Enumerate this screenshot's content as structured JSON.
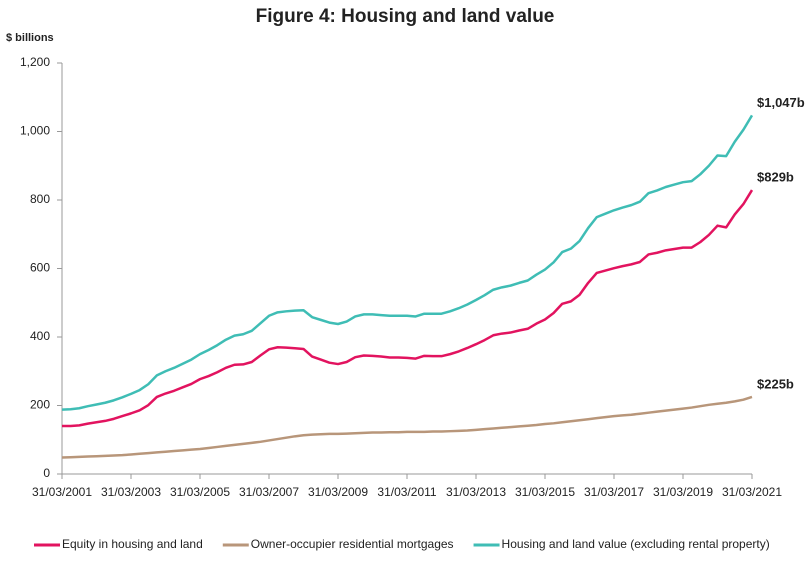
{
  "chart_data": {
    "type": "line",
    "title": "Figure 4: Housing and land value",
    "ylabel": "$ billions",
    "x": [
      "31/03/2001",
      "30/06/2001",
      "30/09/2001",
      "31/12/2001",
      "31/03/2002",
      "30/06/2002",
      "30/09/2002",
      "31/12/2002",
      "31/03/2003",
      "30/06/2003",
      "30/09/2003",
      "31/12/2003",
      "31/03/2004",
      "30/06/2004",
      "30/09/2004",
      "31/12/2004",
      "31/03/2005",
      "30/06/2005",
      "30/09/2005",
      "31/12/2005",
      "31/03/2006",
      "30/06/2006",
      "30/09/2006",
      "31/12/2006",
      "31/03/2007",
      "30/06/2007",
      "30/09/2007",
      "31/12/2007",
      "31/03/2008",
      "30/06/2008",
      "30/09/2008",
      "31/12/2008",
      "31/03/2009",
      "30/06/2009",
      "30/09/2009",
      "31/12/2009",
      "31/03/2010",
      "30/06/2010",
      "30/09/2010",
      "31/12/2010",
      "31/03/2011",
      "30/06/2011",
      "30/09/2011",
      "31/12/2011",
      "31/03/2012",
      "30/06/2012",
      "30/09/2012",
      "31/12/2012",
      "31/03/2013",
      "30/06/2013",
      "30/09/2013",
      "31/12/2013",
      "31/03/2014",
      "30/06/2014",
      "30/09/2014",
      "31/12/2014",
      "31/03/2015",
      "30/06/2015",
      "30/09/2015",
      "31/12/2015",
      "31/03/2016",
      "30/06/2016",
      "30/09/2016",
      "31/12/2016",
      "31/03/2017",
      "30/06/2017",
      "30/09/2017",
      "31/12/2017",
      "31/03/2018",
      "30/06/2018",
      "30/09/2018",
      "31/12/2018",
      "31/03/2019",
      "30/06/2019",
      "30/09/2019",
      "31/12/2019",
      "31/03/2020",
      "30/06/2020",
      "30/09/2020",
      "31/12/2020",
      "31/03/2021"
    ],
    "xticks": [
      "31/03/2001",
      "31/03/2003",
      "31/03/2005",
      "31/03/2007",
      "31/03/2009",
      "31/03/2011",
      "31/03/2013",
      "31/03/2015",
      "31/03/2017",
      "31/03/2019",
      "31/03/2021"
    ],
    "ylim": [
      0,
      1200
    ],
    "yticks": [
      0,
      200,
      400,
      600,
      800,
      {
        "value": 1000,
        "label": "1,000"
      },
      {
        "value": 1200,
        "label": "1,200"
      }
    ],
    "legend": "bottom",
    "series": [
      {
        "name": "Equity in housing and land",
        "color": "#e2135f",
        "end_label": "$829b",
        "values": [
          140,
          140,
          142,
          147,
          151,
          155,
          161,
          169,
          177,
          186,
          201,
          225,
          235,
          243,
          253,
          263,
          277,
          286,
          297,
          310,
          319,
          320,
          327,
          346,
          364,
          370,
          369,
          367,
          365,
          343,
          334,
          325,
          321,
          327,
          341,
          346,
          345,
          343,
          340,
          340,
          339,
          337,
          345,
          344,
          344,
          350,
          358,
          368,
          379,
          391,
          405,
          410,
          413,
          419,
          424,
          439,
          451,
          470,
          497,
          504,
          523,
          558,
          587,
          594,
          601,
          607,
          612,
          619,
          641,
          646,
          653,
          657,
          661,
          661,
          677,
          698,
          725,
          720,
          758,
          788,
          829
        ]
      },
      {
        "name": "Owner-occupier residential mortgages",
        "color": "#b8967a",
        "end_label": "$225b",
        "values": [
          48,
          49,
          50,
          51,
          52,
          53,
          54,
          55,
          57,
          59,
          61,
          63,
          65,
          67,
          69,
          71,
          73,
          76,
          79,
          82,
          85,
          88,
          91,
          94,
          98,
          102,
          106,
          110,
          113,
          115,
          116,
          117,
          117,
          118,
          119,
          120,
          121,
          121,
          122,
          122,
          123,
          123,
          123,
          124,
          124,
          125,
          126,
          127,
          129,
          131,
          133,
          135,
          137,
          139,
          141,
          143,
          146,
          148,
          151,
          154,
          157,
          160,
          163,
          166,
          169,
          171,
          173,
          176,
          179,
          182,
          185,
          188,
          191,
          194,
          198,
          202,
          205,
          208,
          212,
          217,
          225
        ]
      },
      {
        "name": "Housing and land value (excluding rental property)",
        "color": "#3fbdb5",
        "end_label": "$1,047b",
        "values": [
          188,
          189,
          192,
          198,
          203,
          208,
          215,
          224,
          234,
          245,
          262,
          288,
          300,
          310,
          322,
          334,
          350,
          362,
          376,
          392,
          404,
          408,
          418,
          440,
          462,
          472,
          475,
          477,
          478,
          458,
          450,
          442,
          438,
          445,
          460,
          466,
          466,
          464,
          462,
          462,
          462,
          460,
          468,
          468,
          468,
          475,
          484,
          495,
          508,
          522,
          538,
          545,
          550,
          558,
          565,
          582,
          597,
          618,
          648,
          658,
          680,
          718,
          750,
          760,
          770,
          778,
          785,
          795,
          820,
          828,
          838,
          845,
          852,
          855,
          875,
          900,
          930,
          928,
          970,
          1005,
          1047
        ]
      }
    ]
  }
}
